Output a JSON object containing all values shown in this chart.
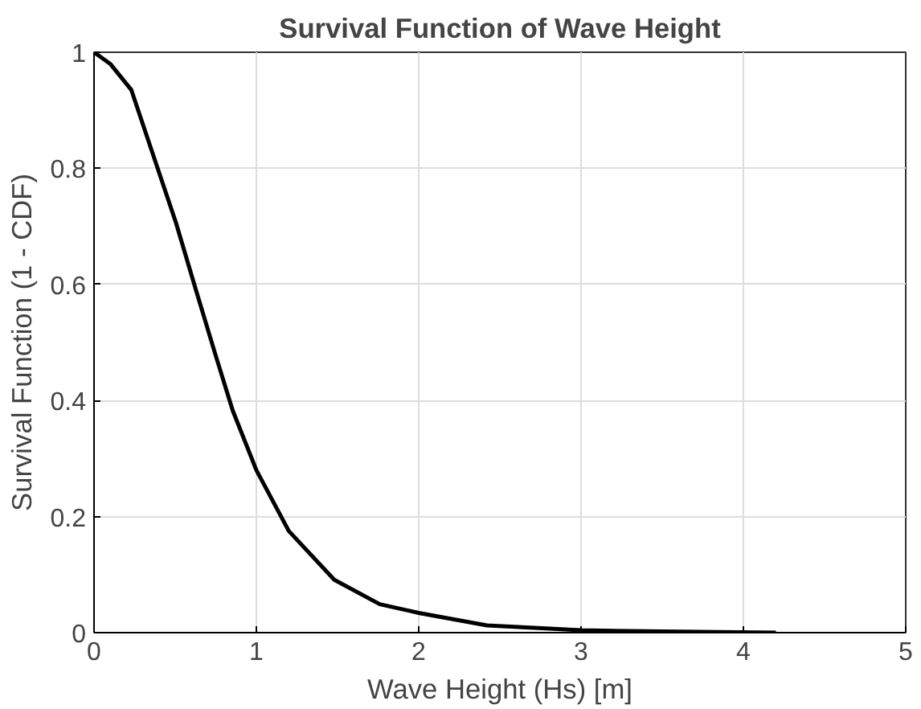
{
  "chart_data": {
    "type": "line",
    "title": "Survival Function of Wave Height",
    "xlabel": "Wave Height (Hs) [m]",
    "ylabel": "Survival Function (1 - CDF)",
    "x": [
      0,
      0.1,
      0.23,
      0.38,
      0.505,
      0.627,
      0.75,
      0.854,
      1.0,
      1.2,
      1.48,
      1.76,
      2.0,
      2.42,
      3.0,
      3.5,
      4.2
    ],
    "series": [
      {
        "color": "#000000",
        "values": [
          1,
          0.98,
          0.935,
          0.81,
          0.706,
          0.591,
          0.477,
          0.383,
          0.28,
          0.175,
          0.091,
          0.049,
          0.034,
          0.0125,
          0.004,
          0.002,
          0.0
        ]
      }
    ],
    "xlim": [
      0,
      5
    ],
    "ylim": [
      0,
      1
    ],
    "xticks": [
      0,
      1,
      2,
      3,
      4,
      5
    ],
    "yticks": [
      0,
      0.2,
      0.4,
      0.6,
      0.8,
      1
    ],
    "grid": true,
    "line_style": "solid",
    "marker": "none"
  }
}
